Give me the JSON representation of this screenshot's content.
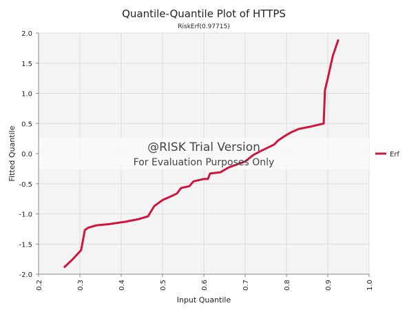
{
  "chart_data": {
    "type": "line",
    "title": "Quantile-Quantile Plot of HTTPS",
    "subtitle": "RiskErf(0.97715)",
    "xlabel": "Input Quantile",
    "ylabel": "Fitted Quantile",
    "xlim": [
      0.2,
      1.0
    ],
    "ylim": [
      -2.0,
      2.0
    ],
    "x_ticks": [
      "0.2",
      "0.3",
      "0.4",
      "0.5",
      "0.6",
      "0.7",
      "0.8",
      "0.9",
      "1.0"
    ],
    "y_ticks": [
      "2.0",
      "1.5",
      "1.0",
      "0.5",
      "0.0",
      "-0.5",
      "-1.0",
      "-1.5",
      "-2.0"
    ],
    "grid": true,
    "legend_position": "right",
    "series": [
      {
        "name": "Erf",
        "color": "#d0143c",
        "x": [
          0.263,
          0.283,
          0.303,
          0.312,
          0.32,
          0.34,
          0.37,
          0.41,
          0.44,
          0.465,
          0.48,
          0.49,
          0.5,
          0.52,
          0.535,
          0.545,
          0.565,
          0.575,
          0.6,
          0.61,
          0.615,
          0.64,
          0.66,
          0.7,
          0.72,
          0.74,
          0.77,
          0.78,
          0.8,
          0.81,
          0.83,
          0.86,
          0.89,
          0.893,
          0.9,
          0.912,
          0.925
        ],
        "values": [
          -1.88,
          -1.75,
          -1.6,
          -1.27,
          -1.23,
          -1.19,
          -1.17,
          -1.13,
          -1.09,
          -1.04,
          -0.87,
          -0.82,
          -0.77,
          -0.71,
          -0.66,
          -0.57,
          -0.54,
          -0.46,
          -0.42,
          -0.42,
          -0.33,
          -0.31,
          -0.23,
          -0.13,
          -0.02,
          0.05,
          0.15,
          0.22,
          0.31,
          0.35,
          0.41,
          0.45,
          0.5,
          1.05,
          1.25,
          1.62,
          1.88
        ]
      }
    ],
    "watermark": {
      "title": "@RISK Trial Version",
      "subtitle": "For Evaluation Purposes Only"
    }
  }
}
